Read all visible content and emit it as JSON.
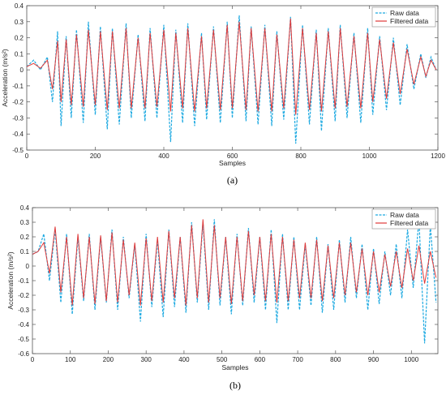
{
  "chart_data": [
    {
      "type": "line",
      "caption": "(a)",
      "xlabel": "Samples",
      "ylabel": "Acceleration (m/s²)",
      "xlim": [
        0,
        1200
      ],
      "ylim": [
        -0.5,
        0.4
      ],
      "xticks": [
        0,
        200,
        400,
        600,
        800,
        1000,
        1200
      ],
      "yticks": [
        -0.5,
        -0.4,
        -0.3,
        -0.2,
        -0.1,
        0,
        0.1,
        0.2,
        0.3,
        0.4
      ],
      "legend_position": "top-right",
      "series": [
        {
          "name": "Raw data",
          "color": "#1ca9e1",
          "style": "dashed",
          "x": [
            0,
            20,
            40,
            60,
            75,
            90,
            100,
            115,
            130,
            145,
            165,
            180,
            200,
            215,
            235,
            250,
            270,
            290,
            305,
            325,
            345,
            360,
            380,
            400,
            420,
            435,
            455,
            470,
            490,
            510,
            525,
            545,
            565,
            585,
            600,
            620,
            640,
            655,
            675,
            695,
            715,
            730,
            750,
            770,
            785,
            805,
            825,
            845,
            860,
            880,
            900,
            915,
            935,
            955,
            975,
            995,
            1010,
            1030,
            1050,
            1070,
            1090,
            1110,
            1130,
            1150,
            1165,
            1180,
            1195
          ],
          "y": [
            0.02,
            0.06,
            0.0,
            0.08,
            -0.2,
            0.24,
            -0.35,
            0.21,
            -0.3,
            0.25,
            -0.33,
            0.3,
            -0.28,
            0.27,
            -0.37,
            0.26,
            -0.34,
            0.29,
            -0.3,
            0.22,
            -0.32,
            0.26,
            -0.3,
            0.28,
            -0.45,
            0.25,
            -0.33,
            0.29,
            -0.35,
            0.23,
            -0.31,
            0.27,
            -0.33,
            0.3,
            -0.3,
            0.34,
            -0.32,
            0.27,
            -0.34,
            0.28,
            -0.35,
            0.24,
            -0.31,
            0.33,
            -0.46,
            0.28,
            -0.34,
            0.25,
            -0.38,
            0.26,
            -0.32,
            0.28,
            -0.3,
            0.23,
            -0.33,
            0.26,
            -0.28,
            0.21,
            -0.25,
            0.2,
            -0.22,
            0.16,
            -0.12,
            0.1,
            -0.05,
            0.08,
            0.0
          ]
        },
        {
          "name": "Filtered data",
          "color": "#e03a3a",
          "style": "solid",
          "x": [
            0,
            20,
            40,
            60,
            75,
            90,
            100,
            115,
            130,
            145,
            165,
            180,
            200,
            215,
            235,
            250,
            270,
            290,
            305,
            325,
            345,
            360,
            380,
            400,
            420,
            435,
            455,
            470,
            490,
            510,
            525,
            545,
            565,
            585,
            600,
            620,
            640,
            655,
            675,
            695,
            715,
            730,
            750,
            770,
            785,
            805,
            825,
            845,
            860,
            880,
            900,
            915,
            935,
            955,
            975,
            995,
            1010,
            1030,
            1050,
            1070,
            1090,
            1110,
            1130,
            1150,
            1165,
            1180,
            1195
          ],
          "y": [
            0.02,
            0.04,
            0.01,
            0.06,
            -0.12,
            0.18,
            -0.2,
            0.19,
            -0.22,
            0.22,
            -0.23,
            0.25,
            -0.22,
            0.24,
            -0.25,
            0.24,
            -0.24,
            0.26,
            -0.24,
            0.2,
            -0.24,
            0.23,
            -0.23,
            0.25,
            -0.26,
            0.23,
            -0.24,
            0.26,
            -0.26,
            0.21,
            -0.24,
            0.25,
            -0.25,
            0.28,
            -0.24,
            0.3,
            -0.25,
            0.26,
            -0.26,
            0.26,
            -0.26,
            0.22,
            -0.24,
            0.32,
            -0.28,
            0.26,
            -0.25,
            0.23,
            -0.26,
            0.24,
            -0.24,
            0.26,
            -0.23,
            0.21,
            -0.24,
            0.23,
            -0.2,
            0.19,
            -0.18,
            0.17,
            -0.15,
            0.13,
            -0.09,
            0.08,
            -0.04,
            0.06,
            0.0
          ]
        }
      ]
    },
    {
      "type": "line",
      "caption": "(b)",
      "xlabel": "Samples",
      "ylabel": "Acceleration (m/s²)",
      "xlim": [
        0,
        1070
      ],
      "ylim": [
        -0.6,
        0.4
      ],
      "xticks": [
        0,
        100,
        200,
        300,
        400,
        500,
        600,
        700,
        800,
        900,
        1000
      ],
      "yticks": [
        -0.6,
        -0.5,
        -0.4,
        -0.3,
        -0.2,
        -0.1,
        0,
        0.1,
        0.2,
        0.3,
        0.4
      ],
      "legend_position": "top-right",
      "series": [
        {
          "name": "Raw data",
          "color": "#1ca9e1",
          "style": "dashed",
          "x": [
            0,
            15,
            30,
            45,
            60,
            75,
            90,
            105,
            120,
            135,
            150,
            165,
            180,
            195,
            210,
            225,
            240,
            255,
            270,
            285,
            300,
            315,
            330,
            345,
            360,
            375,
            390,
            405,
            420,
            435,
            450,
            465,
            480,
            495,
            510,
            525,
            540,
            555,
            570,
            585,
            600,
            615,
            630,
            645,
            660,
            675,
            690,
            705,
            720,
            735,
            750,
            765,
            780,
            795,
            810,
            825,
            840,
            855,
            870,
            885,
            900,
            915,
            930,
            945,
            960,
            975,
            990,
            1005,
            1020,
            1035,
            1050,
            1065
          ],
          "y": [
            0.08,
            0.1,
            0.22,
            -0.1,
            0.25,
            -0.25,
            0.22,
            -0.33,
            0.2,
            -0.24,
            0.22,
            -0.3,
            0.2,
            -0.25,
            0.25,
            -0.3,
            0.2,
            -0.22,
            0.15,
            -0.38,
            0.22,
            -0.28,
            0.18,
            -0.35,
            0.25,
            -0.28,
            0.2,
            -0.32,
            0.3,
            -0.25,
            0.3,
            -0.3,
            0.32,
            -0.27,
            0.2,
            -0.33,
            0.22,
            -0.27,
            0.26,
            -0.25,
            0.2,
            -0.3,
            0.25,
            -0.39,
            0.22,
            -0.3,
            0.2,
            -0.3,
            0.15,
            -0.27,
            0.2,
            -0.32,
            0.15,
            -0.3,
            0.18,
            -0.25,
            0.2,
            -0.22,
            0.15,
            -0.3,
            0.12,
            -0.26,
            0.1,
            -0.2,
            0.15,
            -0.22,
            0.25,
            -0.15,
            0.32,
            -0.53,
            0.28,
            -0.25
          ]
        },
        {
          "name": "Filtered data",
          "color": "#e03a3a",
          "style": "solid",
          "x": [
            0,
            15,
            30,
            45,
            60,
            75,
            90,
            105,
            120,
            135,
            150,
            165,
            180,
            195,
            210,
            225,
            240,
            255,
            270,
            285,
            300,
            315,
            330,
            345,
            360,
            375,
            390,
            405,
            420,
            435,
            450,
            465,
            480,
            495,
            510,
            525,
            540,
            555,
            570,
            585,
            600,
            615,
            630,
            645,
            660,
            675,
            690,
            705,
            720,
            735,
            750,
            765,
            780,
            795,
            810,
            825,
            840,
            855,
            870,
            885,
            900,
            915,
            930,
            945,
            960,
            975,
            990,
            1005,
            1020,
            1035,
            1050,
            1065
          ],
          "y": [
            0.08,
            0.1,
            0.16,
            -0.05,
            0.27,
            -0.18,
            0.2,
            -0.27,
            0.22,
            -0.22,
            0.2,
            -0.26,
            0.21,
            -0.24,
            0.23,
            -0.25,
            0.18,
            -0.2,
            0.16,
            -0.27,
            0.19,
            -0.24,
            0.2,
            -0.25,
            0.24,
            -0.22,
            0.2,
            -0.27,
            0.28,
            -0.22,
            0.32,
            -0.25,
            0.28,
            -0.22,
            0.2,
            -0.26,
            0.2,
            -0.24,
            0.24,
            -0.2,
            0.2,
            -0.24,
            0.22,
            -0.25,
            0.2,
            -0.24,
            0.18,
            -0.22,
            0.16,
            -0.22,
            0.18,
            -0.24,
            0.14,
            -0.22,
            0.16,
            -0.2,
            0.16,
            -0.18,
            0.12,
            -0.2,
            0.1,
            -0.18,
            0.08,
            -0.14,
            0.1,
            -0.15,
            0.12,
            -0.1,
            0.14,
            -0.12,
            0.1,
            -0.08
          ]
        }
      ]
    }
  ]
}
